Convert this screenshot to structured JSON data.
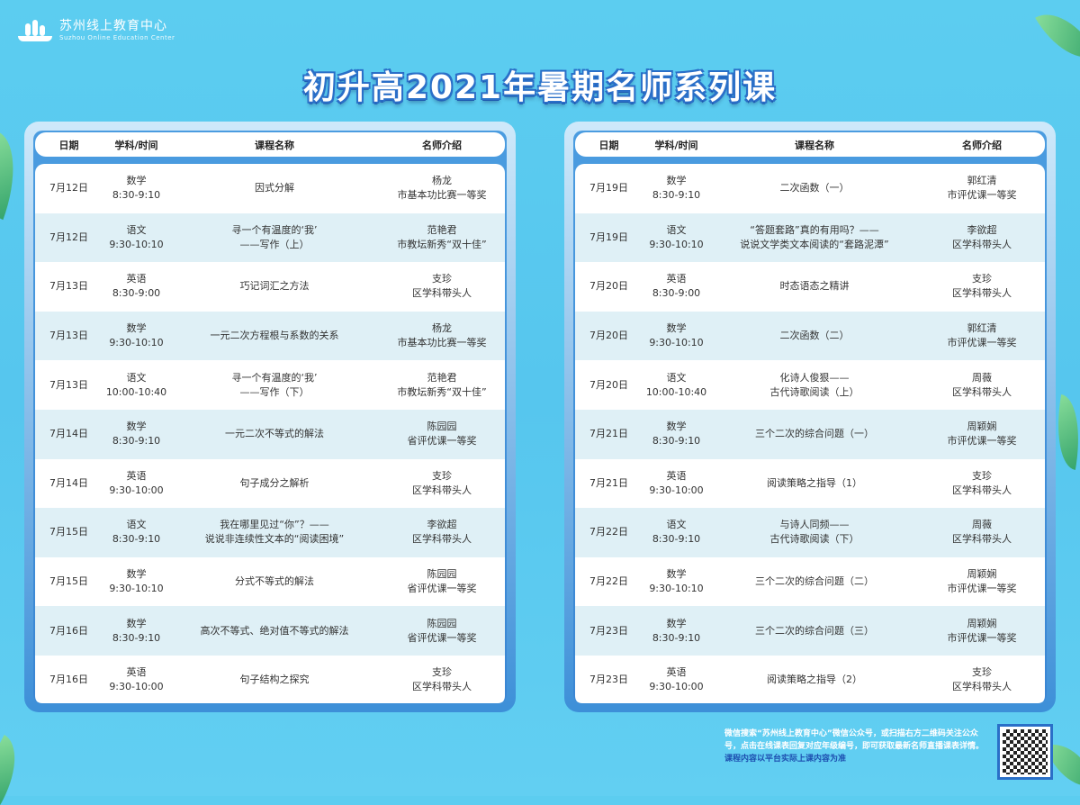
{
  "logo": {
    "name_cn": "苏州线上教育中心",
    "name_en": "Suzhou Online Education Center"
  },
  "title": "初升高2021年暑期名师系列课",
  "headers": [
    "日期",
    "学科/时间",
    "课程名称",
    "名师介绍"
  ],
  "tables": [
    {
      "rows": [
        {
          "date": "7月12日",
          "subject": "数学",
          "time": "8:30-9:10",
          "course": [
            "因式分解"
          ],
          "teacher": "杨龙",
          "title": "市基本功比赛一等奖"
        },
        {
          "date": "7月12日",
          "subject": "语文",
          "time": "9:30-10:10",
          "course": [
            "寻一个有温度的‘我’",
            "——写作（上）"
          ],
          "teacher": "范艳君",
          "title": "市教坛新秀“双十佳”"
        },
        {
          "date": "7月13日",
          "subject": "英语",
          "time": "8:30-9:00",
          "course": [
            "巧记词汇之方法"
          ],
          "teacher": "支珍",
          "title": "区学科带头人"
        },
        {
          "date": "7月13日",
          "subject": "数学",
          "time": "9:30-10:10",
          "course": [
            "一元二次方程根与系数的关系"
          ],
          "teacher": "杨龙",
          "title": "市基本功比赛一等奖"
        },
        {
          "date": "7月13日",
          "subject": "语文",
          "time": "10:00-10:40",
          "course": [
            "寻一个有温度的‘我’",
            "——写作（下）"
          ],
          "teacher": "范艳君",
          "title": "市教坛新秀“双十佳”"
        },
        {
          "date": "7月14日",
          "subject": "数学",
          "time": "8:30-9:10",
          "course": [
            "一元二次不等式的解法"
          ],
          "teacher": "陈园园",
          "title": "省评优课一等奖"
        },
        {
          "date": "7月14日",
          "subject": "英语",
          "time": "9:30-10:00",
          "course": [
            "句子成分之解析"
          ],
          "teacher": "支珍",
          "title": "区学科带头人"
        },
        {
          "date": "7月15日",
          "subject": "语文",
          "time": "8:30-9:10",
          "course": [
            "我在哪里见过“你”？——",
            "说说非连续性文本的“阅读困境”"
          ],
          "teacher": "李欲超",
          "title": "区学科带头人"
        },
        {
          "date": "7月15日",
          "subject": "数学",
          "time": "9:30-10:10",
          "course": [
            "分式不等式的解法"
          ],
          "teacher": "陈园园",
          "title": "省评优课一等奖"
        },
        {
          "date": "7月16日",
          "subject": "数学",
          "time": "8:30-9:10",
          "course": [
            "高次不等式、绝对值不等式的解法"
          ],
          "teacher": "陈园园",
          "title": "省评优课一等奖"
        },
        {
          "date": "7月16日",
          "subject": "英语",
          "time": "9:30-10:00",
          "course": [
            "句子结构之探究"
          ],
          "teacher": "支珍",
          "title": "区学科带头人"
        }
      ]
    },
    {
      "rows": [
        {
          "date": "7月19日",
          "subject": "数学",
          "time": "8:30-9:10",
          "course": [
            "二次函数（一）"
          ],
          "teacher": "郭红清",
          "title": "市评优课一等奖"
        },
        {
          "date": "7月19日",
          "subject": "语文",
          "time": "9:30-10:10",
          "course": [
            "“答题套路”真的有用吗？——",
            "说说文学类文本阅读的“套路泥潭”"
          ],
          "teacher": "李欲超",
          "title": "区学科带头人"
        },
        {
          "date": "7月20日",
          "subject": "英语",
          "time": "8:30-9:00",
          "course": [
            "时态语态之精讲"
          ],
          "teacher": "支珍",
          "title": "区学科带头人"
        },
        {
          "date": "7月20日",
          "subject": "数学",
          "time": "9:30-10:10",
          "course": [
            "二次函数（二）"
          ],
          "teacher": "郭红清",
          "title": "市评优课一等奖"
        },
        {
          "date": "7月20日",
          "subject": "语文",
          "time": "10:00-10:40",
          "course": [
            "化诗人俊狠——",
            "古代诗歌阅读（上）"
          ],
          "teacher": "周薇",
          "title": "区学科带头人"
        },
        {
          "date": "7月21日",
          "subject": "数学",
          "time": "8:30-9:10",
          "course": [
            "三个二次的综合问题（一）"
          ],
          "teacher": "周颖娴",
          "title": "市评优课一等奖"
        },
        {
          "date": "7月21日",
          "subject": "英语",
          "time": "9:30-10:00",
          "course": [
            "阅读策略之指导（1）"
          ],
          "teacher": "支珍",
          "title": "区学科带头人"
        },
        {
          "date": "7月22日",
          "subject": "语文",
          "time": "8:30-9:10",
          "course": [
            "与诗人同频——",
            "古代诗歌阅读（下）"
          ],
          "teacher": "周薇",
          "title": "区学科带头人"
        },
        {
          "date": "7月22日",
          "subject": "数学",
          "time": "9:30-10:10",
          "course": [
            "三个二次的综合问题（二）"
          ],
          "teacher": "周颖娴",
          "title": "市评优课一等奖"
        },
        {
          "date": "7月23日",
          "subject": "数学",
          "time": "8:30-9:10",
          "course": [
            "三个二次的综合问题（三）"
          ],
          "teacher": "周颖娴",
          "title": "市评优课一等奖"
        },
        {
          "date": "7月23日",
          "subject": "英语",
          "time": "9:30-10:00",
          "course": [
            "阅读策略之指导（2）"
          ],
          "teacher": "支珍",
          "title": "区学科带头人"
        }
      ]
    }
  ],
  "footer": {
    "info": "微信搜索“苏州线上教育中心”微信公众号，或扫描右方二维码关注公众号，点击在线课表回复对应年级编号，即可获取最新名师直播课表详情。",
    "note": "课程内容以平台实际上课内容为准"
  },
  "colors": {
    "background": "#5ccdf0",
    "title_outline": "#2a6fc8",
    "row_alt": "#dff0f6",
    "panel_border": "#3d8fd8"
  }
}
